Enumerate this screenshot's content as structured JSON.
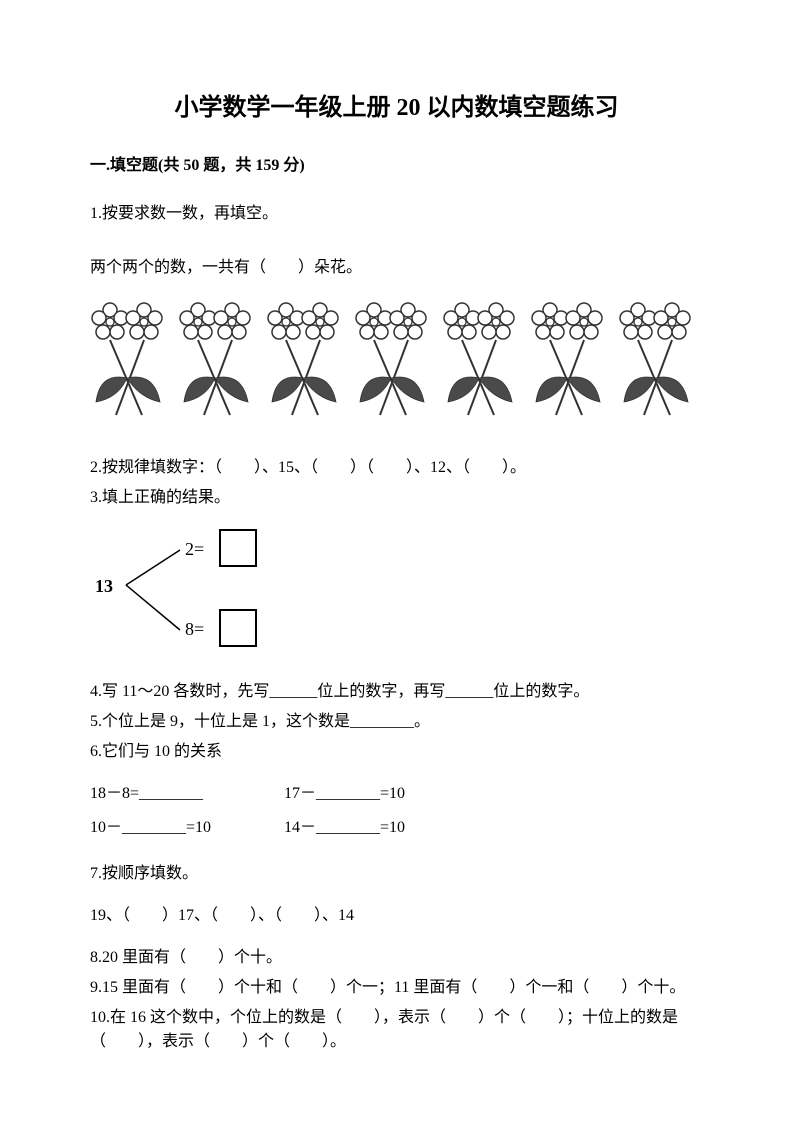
{
  "title": "小学数学一年级上册 20 以内数填空题练习",
  "section_header": "一.填空题(共 50 题，共 159 分)",
  "q1_line1": "1.按要求数一数，再填空。",
  "q1_line2": "两个两个的数，一共有（　　）朵花。",
  "q2": "2.按规律填数字：（　　）、15、（　　）（　　）、12、（　　）。",
  "q3": "3.填上正确的结果。",
  "diagram_root": "13",
  "diagram_top_val": "2=",
  "diagram_bot_val": "8=",
  "q4": "4.写 11～20 各数时，先写______位上的数字，再写______位上的数字。",
  "q5": "5.个位上是 9，十位上是 1，这个数是________。",
  "q6": "6.它们与 10 的关系",
  "q6_eq1a": "18－8=________",
  "q6_eq1b": "17－________=10",
  "q6_eq2a": "10－________=10",
  "q6_eq2b": "14－________=10",
  "q7": "7.按顺序填数。",
  "q7_seq": "19、（　　）17、（　　）、（　　）、14",
  "q8": "8.20 里面有（　　）个十。",
  "q9": "9.15 里面有（　　）个十和（　　）个一；11 里面有（　　）个一和（　　）个十。",
  "q10": "10.在 16 这个数中，个位上的数是（　　），表示（　　）个（　　）；十位上的数是（　　），表示（　　）个（　　）。",
  "flower_count": 7,
  "colors": {
    "text": "#000000",
    "bg": "#ffffff",
    "flower_stroke": "#333333",
    "leaf_fill": "#4a4a4a"
  }
}
